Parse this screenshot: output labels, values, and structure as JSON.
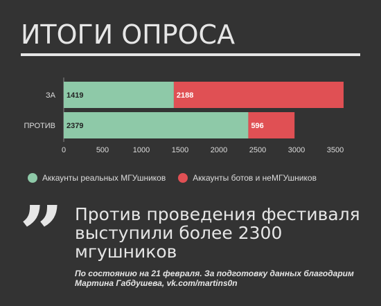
{
  "title": "ИТОГИ ОПРОСА",
  "colors": {
    "background": "#333333",
    "real": "#8ec9a8",
    "bots": "#e05054",
    "text": "#e6e6e6"
  },
  "chart_data": {
    "type": "bar",
    "orientation": "horizontal",
    "stacked": true,
    "categories": [
      "ЗА",
      "ПРОТИВ"
    ],
    "series": [
      {
        "name": "Аккаунты реальных МГУшников",
        "values": [
          1419,
          2379
        ],
        "color": "#8ec9a8"
      },
      {
        "name": "Аккаунты ботов и неМГУшников",
        "values": [
          2188,
          596
        ],
        "color": "#e05054"
      }
    ],
    "xticks": [
      "0",
      "500",
      "1000",
      "1500",
      "2000",
      "2500",
      "3000",
      "3500"
    ],
    "xlim": [
      0,
      3750
    ],
    "legend_position": "bottom"
  },
  "quote": {
    "mark": "”",
    "text": "Против проведения фестиваля выступили более 2300 мгушников",
    "footnote": "По состоянию на 21 февраля. За подготовку данных благодарим Мартина Габдушева, vk.com/martins0n"
  }
}
